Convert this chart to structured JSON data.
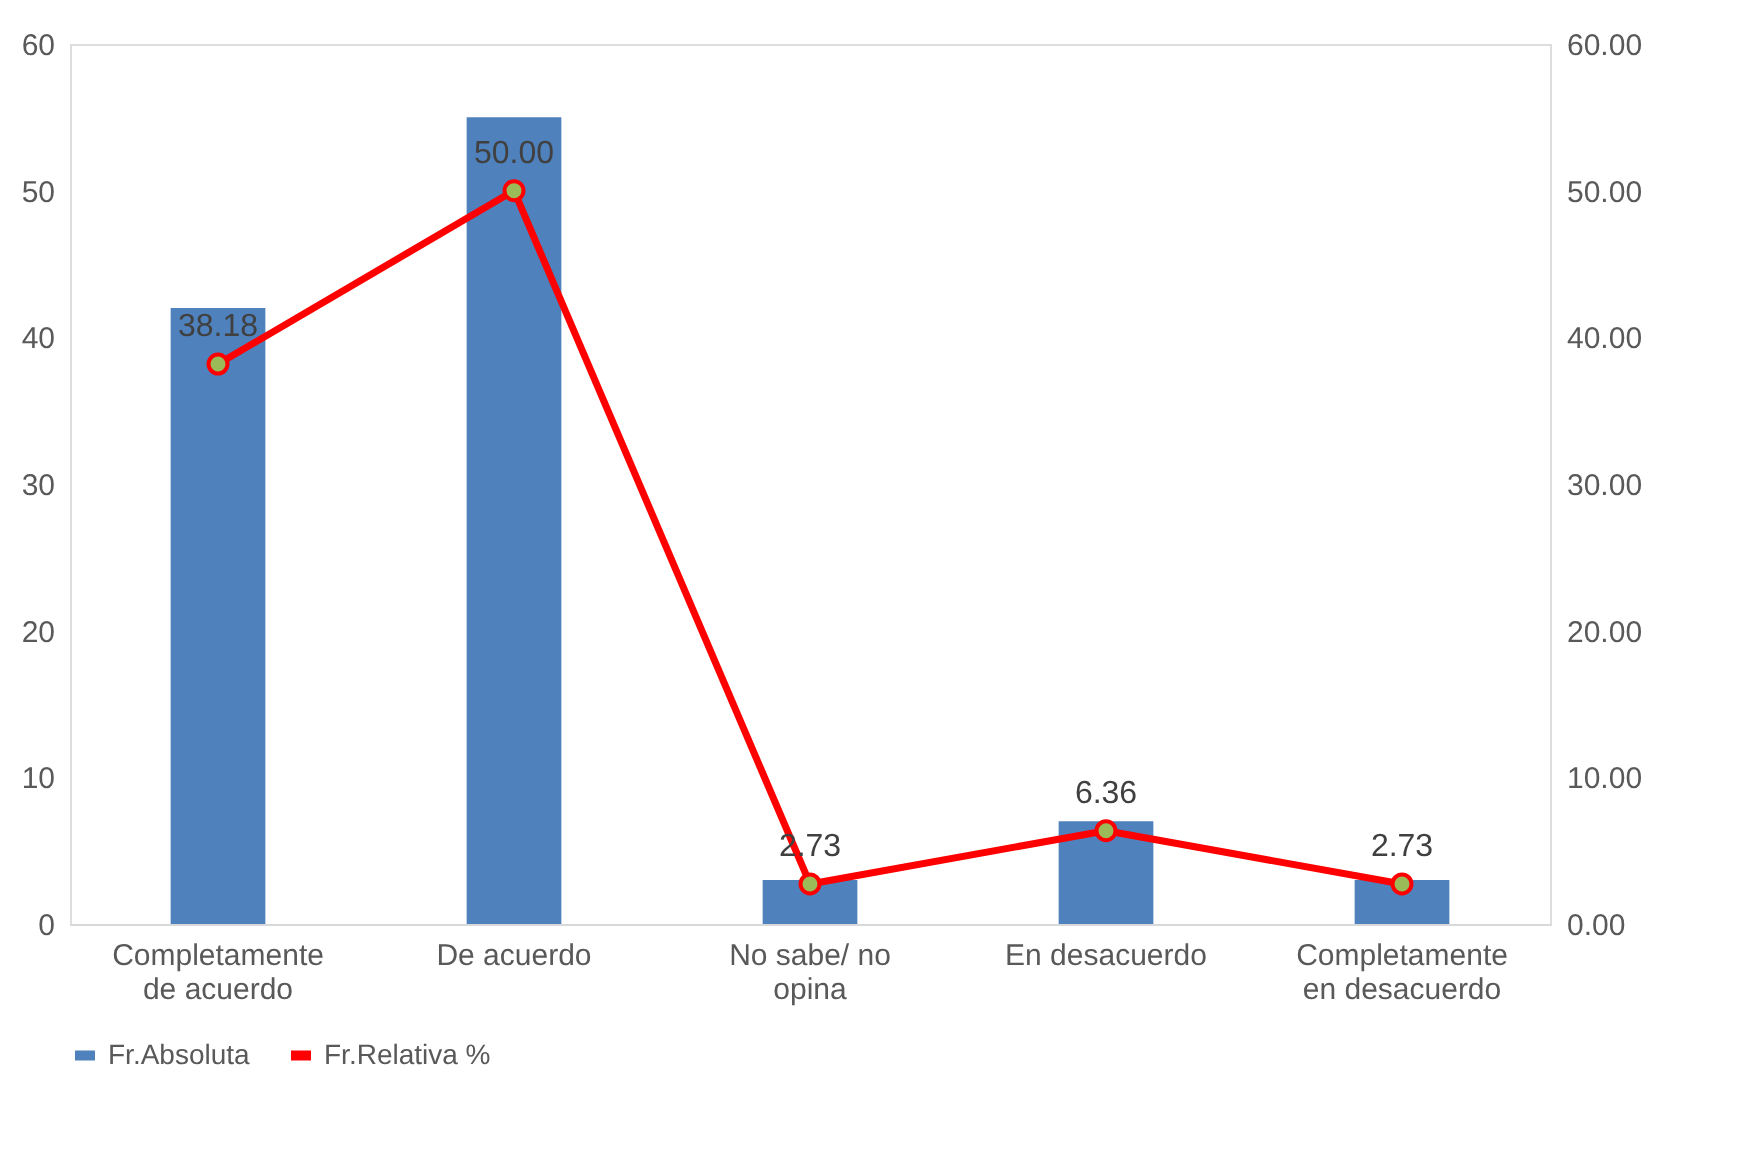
{
  "chart_data": {
    "type": "bar",
    "categories": [
      "Completamente de acuerdo",
      "De acuerdo",
      "No sabe/ no opina",
      "En desacuerdo",
      "Completamente en desacuerdo"
    ],
    "series": [
      {
        "name": "Fr.Absoluta",
        "color": "#4f81bd",
        "values": [
          42,
          55,
          3,
          7,
          3
        ]
      },
      {
        "name": "Fr.Relativa %",
        "type": "line",
        "axis": "y2",
        "color": "#ff0000",
        "values": [
          38.18,
          50.0,
          2.73,
          6.36,
          2.73
        ],
        "value_labels": [
          "38.18",
          "50.00",
          "2.73",
          "6.36",
          "2.73"
        ]
      }
    ],
    "ylim": [
      0,
      60
    ],
    "yticks": [
      0,
      10,
      20,
      30,
      40,
      50,
      60
    ],
    "y2lim": [
      0,
      60
    ],
    "y2ticks": [
      {
        "value": 0,
        "label": "0.00"
      },
      {
        "value": 10,
        "label": "10.00"
      },
      {
        "value": 20,
        "label": "20.00"
      },
      {
        "value": 30,
        "label": "30.00"
      },
      {
        "value": 40,
        "label": "40.00"
      },
      {
        "value": 50,
        "label": "50.00"
      },
      {
        "value": 60,
        "label": "60.00"
      }
    ],
    "marker": "circle",
    "legend": "bottom",
    "grid": false
  }
}
